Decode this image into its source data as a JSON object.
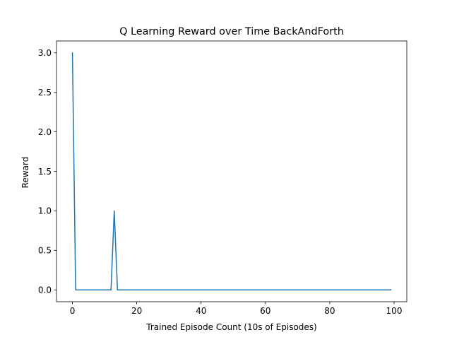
{
  "chart_data": {
    "type": "line",
    "title": "Q Learning Reward over Time BackAndForth",
    "xlabel": "Trained Episode Count (10s of Episodes)",
    "ylabel": "Reward",
    "xlim": [
      -4.95,
      103.95
    ],
    "ylim": [
      -0.15,
      3.15
    ],
    "xticks": [
      0,
      20,
      40,
      60,
      80,
      100
    ],
    "xtick_labels": [
      "0",
      "20",
      "40",
      "60",
      "80",
      "100"
    ],
    "yticks": [
      0.0,
      0.5,
      1.0,
      1.5,
      2.0,
      2.5,
      3.0
    ],
    "ytick_labels": [
      "0.0",
      "0.5",
      "1.0",
      "1.5",
      "2.0",
      "2.5",
      "3.0"
    ],
    "grid": false,
    "series": [
      {
        "color": "#1f77b4",
        "x": [
          0,
          1,
          12,
          13,
          14,
          99
        ],
        "y": [
          3.0,
          0.0,
          0.0,
          1.0,
          0.0,
          0.0
        ]
      }
    ]
  }
}
